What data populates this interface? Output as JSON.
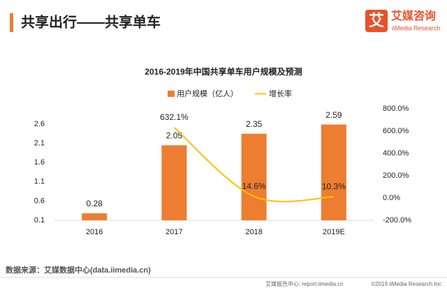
{
  "header": {
    "title": "共享出行——共享单车"
  },
  "logo": {
    "mark": "艾",
    "name": "艾媒咨询",
    "sub": "iiMedia Research"
  },
  "chart_data": {
    "type": "bar",
    "title": "2016-2019年中国共享单车用户规模及预测",
    "categories": [
      "2016",
      "2017",
      "2018",
      "2019E"
    ],
    "series": [
      {
        "name": "用户规模（亿人）",
        "type": "bar",
        "color": "#ED7D31",
        "values": [
          0.28,
          2.05,
          2.35,
          2.59
        ]
      },
      {
        "name": "增长率",
        "type": "line",
        "axis": "y2",
        "color": "#FFC000",
        "values": [
          null,
          632.1,
          14.6,
          10.3
        ],
        "value_labels": [
          null,
          "632.1%",
          "14.6%",
          "10.3%"
        ]
      }
    ],
    "ylim": [
      0.1,
      3.0
    ],
    "yticks": [
      0.1,
      0.6,
      1.1,
      1.6,
      2.1,
      2.6
    ],
    "y2lim": [
      -200,
      800
    ],
    "y2ticks": [
      {
        "value": -200,
        "label": "-200.0%"
      },
      {
        "value": 0,
        "label": "0.0%"
      },
      {
        "value": 200,
        "label": "200.0%"
      },
      {
        "value": 400,
        "label": "400.0%"
      },
      {
        "value": 600,
        "label": "600.0%"
      },
      {
        "value": 800,
        "label": "800.0%"
      }
    ],
    "legend": "top"
  },
  "footer": {
    "source": "数据来源：艾媒数据中心(data.iimedia.cn)",
    "report": "艾媒报告中心: report.iimedia.cn",
    "copyright": "©2019  iiMedia Research  Inc"
  }
}
